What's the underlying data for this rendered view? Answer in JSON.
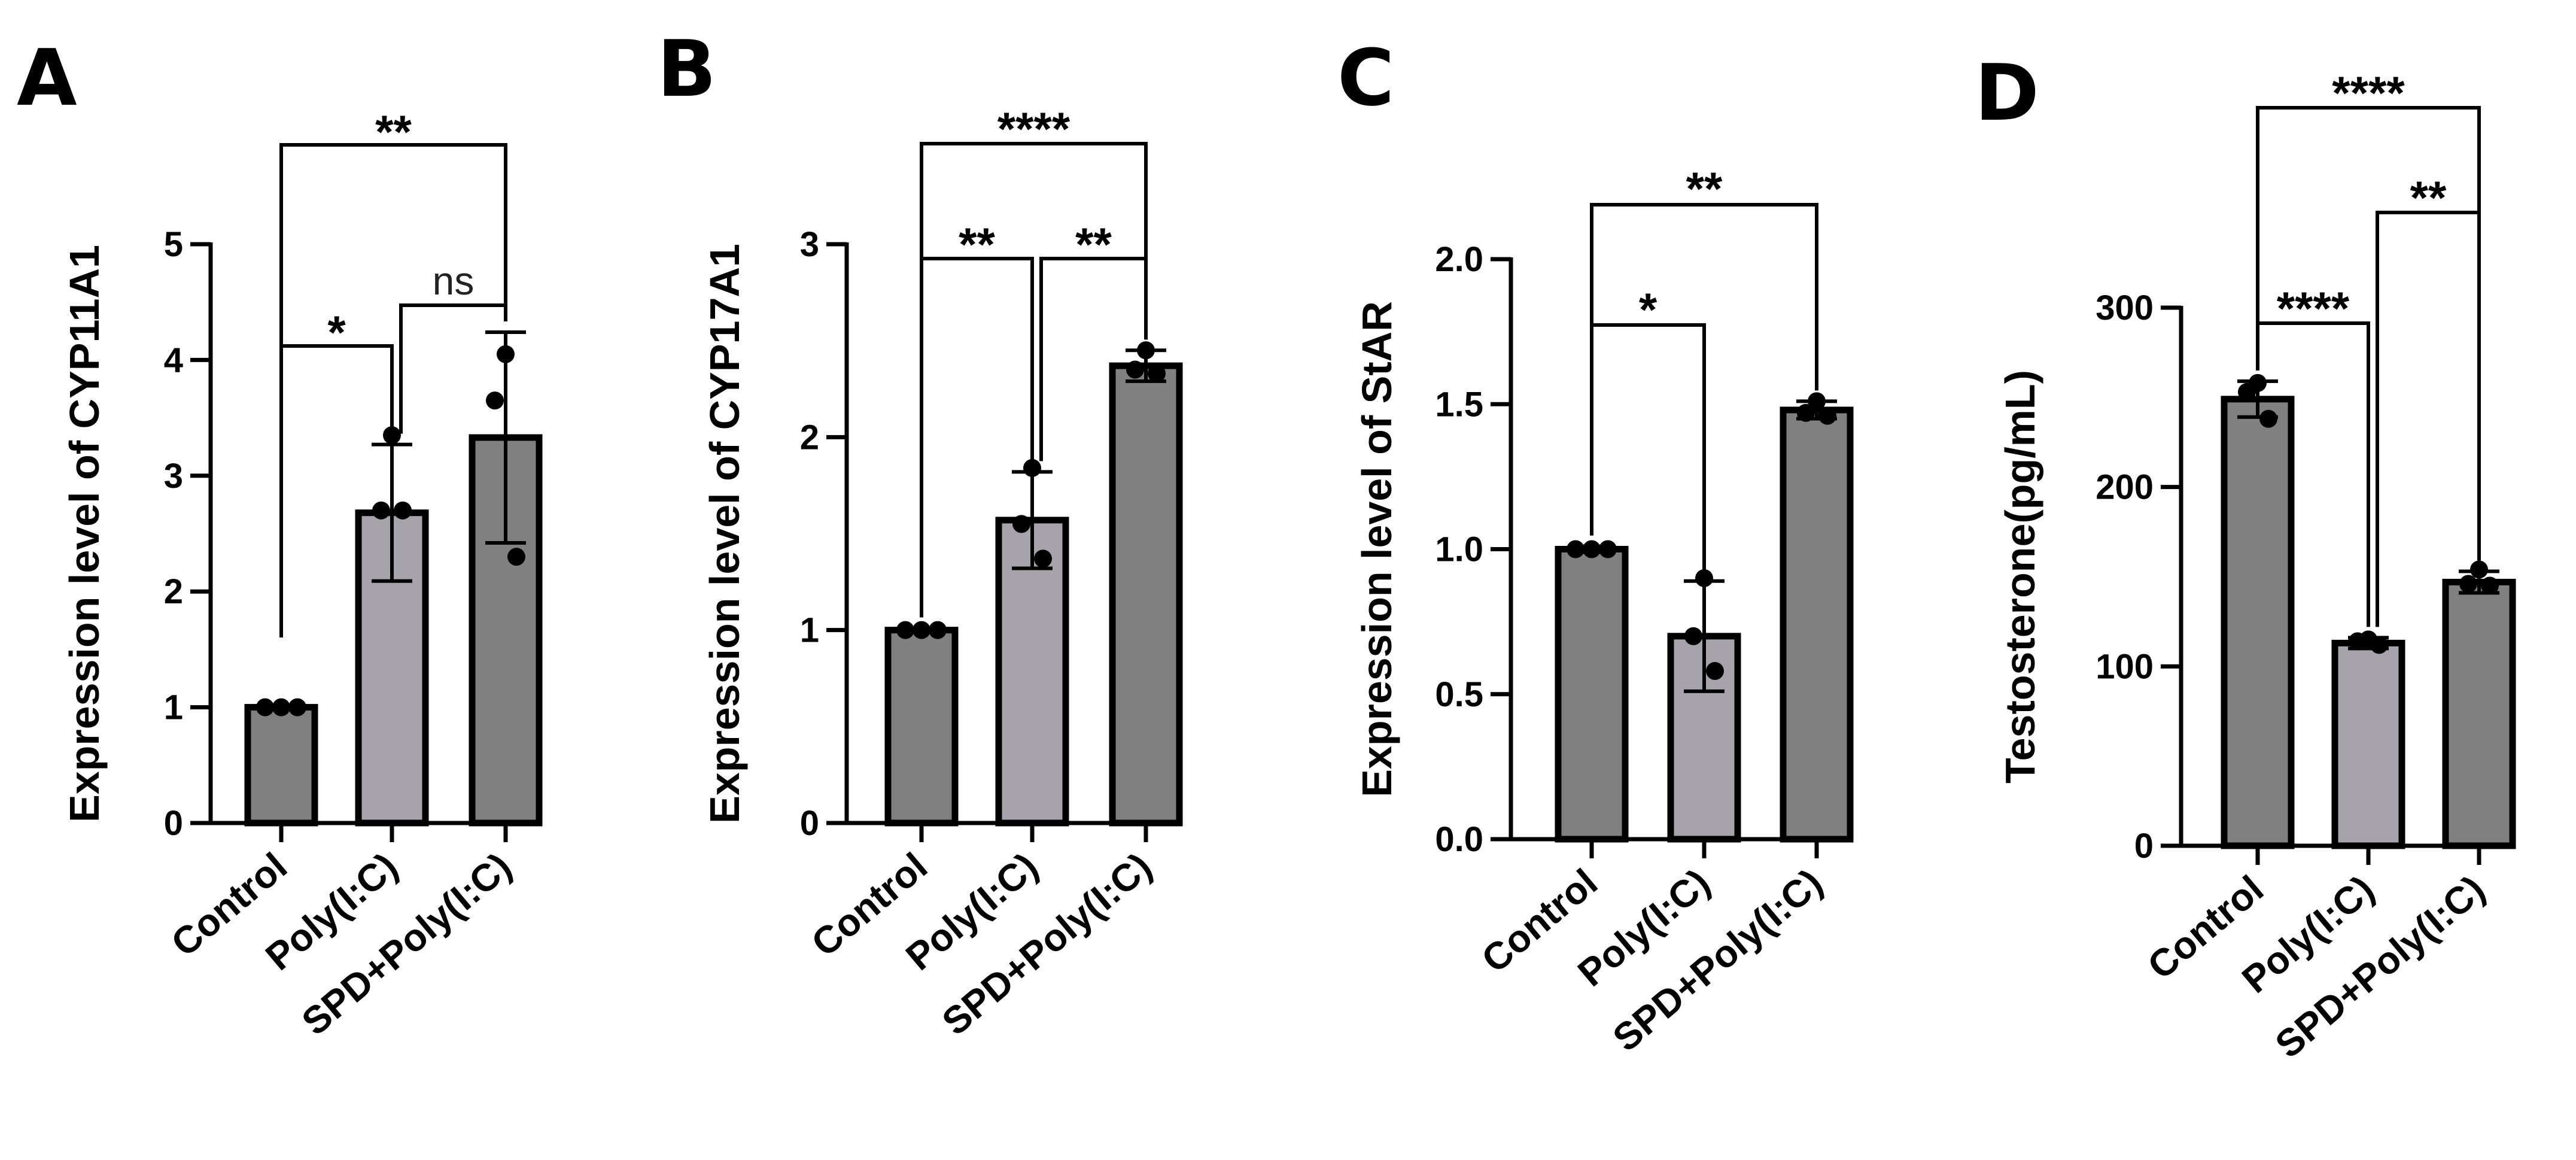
{
  "chart_data": [
    {
      "type": "bar",
      "panel": "A",
      "ylabel": "Expression level of CYP11A1",
      "ylim": [
        0,
        5
      ],
      "yticks": [
        "0",
        "1",
        "2",
        "3",
        "4",
        "5"
      ],
      "categories": [
        "Control",
        "Poly(I:C)",
        "SPD+Poly(I:C)"
      ],
      "values": [
        1.0,
        2.68,
        3.33
      ],
      "errors": [
        0.02,
        0.59,
        0.91
      ],
      "colors": [
        "#808080",
        "#a6a3aa",
        "#808080"
      ],
      "points": [
        [
          1.0,
          1.0,
          1.0
        ],
        [
          3.35,
          2.7,
          2.7
        ],
        [
          4.05,
          3.65,
          2.3
        ]
      ],
      "comparisons": [
        {
          "from": 0,
          "to": 1,
          "label": "*"
        },
        {
          "from": 1,
          "to": 2,
          "label": "ns"
        },
        {
          "from": 0,
          "to": 2,
          "label": "**"
        }
      ]
    },
    {
      "type": "bar",
      "panel": "B",
      "ylabel": "Expression level of CYP17A1",
      "ylim": [
        0,
        3
      ],
      "yticks": [
        "0",
        "1",
        "2",
        "3"
      ],
      "categories": [
        "Control",
        "Poly(I:C)",
        "SPD+Poly(I:C)"
      ],
      "values": [
        1.0,
        1.57,
        2.37
      ],
      "errors": [
        0.01,
        0.25,
        0.08
      ],
      "colors": [
        "#808080",
        "#a6a3aa",
        "#808080"
      ],
      "points": [
        [
          1.0,
          1.0,
          1.0
        ],
        [
          1.84,
          1.55,
          1.37
        ],
        [
          2.45,
          2.35,
          2.33
        ]
      ],
      "comparisons": [
        {
          "from": 0,
          "to": 1,
          "label": "**"
        },
        {
          "from": 1,
          "to": 2,
          "label": "**"
        },
        {
          "from": 0,
          "to": 2,
          "label": "****"
        }
      ]
    },
    {
      "type": "bar",
      "panel": "C",
      "ylabel": "Expression level of StAR",
      "ylim": [
        0,
        2.0
      ],
      "yticks": [
        "0.0",
        "0.5",
        "1.0",
        "1.5",
        "2.0"
      ],
      "categories": [
        "Control",
        "Poly(I:C)",
        "SPD+Poly(I:C)"
      ],
      "values": [
        1.0,
        0.7,
        1.48
      ],
      "errors": [
        0.01,
        0.19,
        0.03
      ],
      "colors": [
        "#808080",
        "#a6a3aa",
        "#808080"
      ],
      "points": [
        [
          1.0,
          1.0,
          1.0
        ],
        [
          0.9,
          0.7,
          0.58
        ],
        [
          1.51,
          1.47,
          1.46
        ]
      ],
      "comparisons": [
        {
          "from": 0,
          "to": 1,
          "label": "*"
        },
        {
          "from": 0,
          "to": 2,
          "label": "**"
        }
      ]
    },
    {
      "type": "bar",
      "panel": "D",
      "ylabel": "Testosterone(pg/mL)",
      "ylim": [
        0,
        300
      ],
      "yticks": [
        "0",
        "100",
        "200",
        "300"
      ],
      "categories": [
        "Control",
        "Poly(I:C)",
        "SPD+Poly(I:C)"
      ],
      "values": [
        249,
        113,
        147
      ],
      "errors": [
        10,
        3,
        6
      ],
      "colors": [
        "#808080",
        "#a6a3aa",
        "#808080"
      ],
      "points": [
        [
          258,
          253,
          238
        ],
        [
          115,
          114,
          112
        ],
        [
          154,
          146,
          145
        ]
      ],
      "comparisons": [
        {
          "from": 0,
          "to": 1,
          "label": "****"
        },
        {
          "from": 1,
          "to": 2,
          "label": "**"
        },
        {
          "from": 0,
          "to": 2,
          "label": "****"
        }
      ]
    }
  ]
}
